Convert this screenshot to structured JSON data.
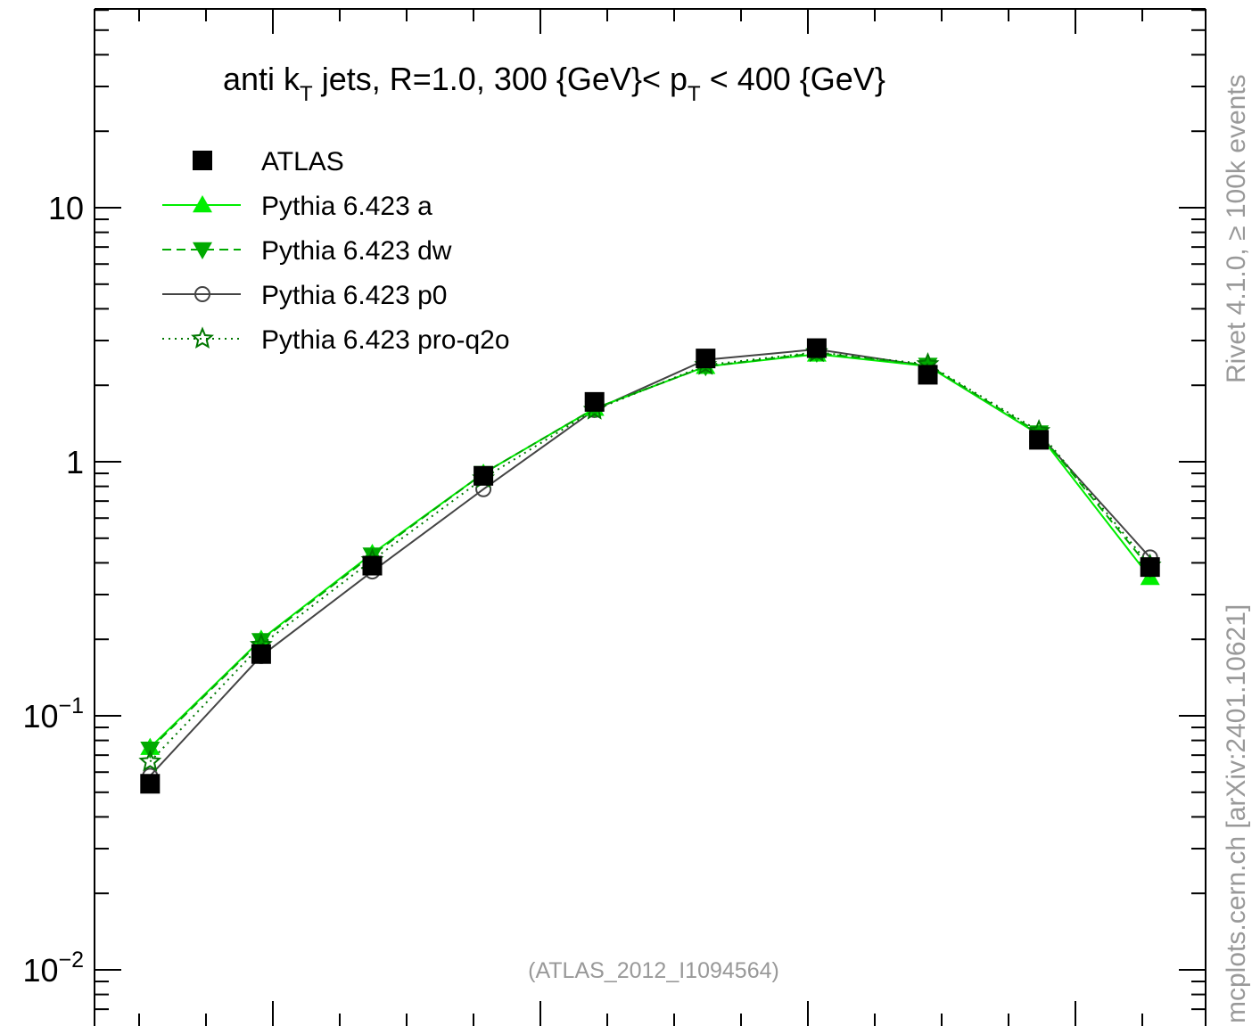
{
  "chart_data": {
    "type": "line",
    "title_main": "anti k",
    "title_sub1": "T",
    "title_mid": " jets, R=1.0,  300 {GeV}< p",
    "title_sub2": "T",
    "title_end": " < 400 {GeV}",
    "y_scale": "log",
    "ylim": [
      0.007,
      70
    ],
    "xlim": [
      0,
      10
    ],
    "y_tick_labels": [
      {
        "value": 10,
        "base": "10",
        "exp": ""
      },
      {
        "value": 1,
        "base": "1",
        "exp": ""
      },
      {
        "value": 0.1,
        "base": "10",
        "exp": "−1"
      },
      {
        "value": 0.01,
        "base": "10",
        "exp": "−2"
      }
    ],
    "x": [
      0.5,
      1.5,
      2.5,
      3.5,
      4.5,
      5.5,
      6.5,
      7.5,
      8.5,
      9.5
    ],
    "series": [
      {
        "name": "ATLAS",
        "color": "#000000",
        "marker": "square",
        "line": "none",
        "values": [
          0.054,
          0.175,
          0.39,
          0.88,
          1.72,
          2.55,
          2.8,
          2.2,
          1.22,
          0.385
        ]
      },
      {
        "name": "Pythia 6.423 a",
        "color": "#00ee00",
        "marker": "triangle-up",
        "line": "solid",
        "values": [
          0.075,
          0.2,
          0.435,
          0.9,
          1.62,
          2.37,
          2.65,
          2.38,
          1.28,
          0.35
        ]
      },
      {
        "name": "Pythia 6.423 dw",
        "color": "#00aa00",
        "marker": "triangle-down",
        "line": "dashed",
        "values": [
          0.074,
          0.198,
          0.43,
          0.9,
          1.62,
          2.37,
          2.68,
          2.4,
          1.3,
          0.38
        ]
      },
      {
        "name": "Pythia 6.423 p0",
        "color": "#444444",
        "marker": "circle-open",
        "line": "solid",
        "values": [
          0.058,
          0.172,
          0.37,
          0.78,
          1.6,
          2.52,
          2.77,
          2.38,
          1.28,
          0.42
        ]
      },
      {
        "name": "Pythia 6.423 pro-q2o",
        "color": "#007700",
        "marker": "star-open",
        "line": "dotted",
        "values": [
          0.066,
          0.19,
          0.41,
          0.86,
          1.6,
          2.4,
          2.7,
          2.42,
          1.32,
          0.39
        ]
      }
    ],
    "annotation": "(ATLAS_2012_I1094564)",
    "side_label_top": "Rivet 4.1.0, ≥ 100k events",
    "side_label_bottom": "mcplots.cern.ch [arXiv:2401.10621]"
  }
}
